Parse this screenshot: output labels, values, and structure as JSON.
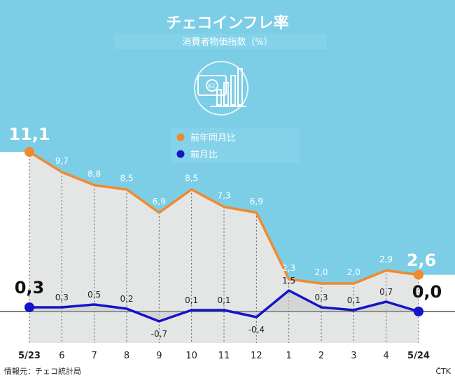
{
  "title": "チェコインフレ率",
  "subtitle": "消費者物価指数（%）",
  "source": "情報元：チェコ統計局",
  "agency": "ČTK",
  "icon": "koruna-chart-icon",
  "colors": {
    "sky": "#7ccde6",
    "yoy": "#f08a2e",
    "mom": "#1414c8",
    "fill": "#e4e6e6",
    "grid": "#555555"
  },
  "chart_data": {
    "type": "line",
    "categories": [
      "5/23",
      "6",
      "7",
      "8",
      "9",
      "10",
      "11",
      "12",
      "1",
      "2",
      "3",
      "4",
      "5/24"
    ],
    "series": [
      {
        "name": "前年同月比",
        "values": [
          11.1,
          9.7,
          8.8,
          8.5,
          6.9,
          8.5,
          7.3,
          6.9,
          2.3,
          2.0,
          2.0,
          2.9,
          2.6
        ],
        "labels": [
          "11,1",
          "9,7",
          "8,8",
          "8,5",
          "6,9",
          "8,5",
          "7,3",
          "6,9",
          "2,3",
          "2,0",
          "2,0",
          "2,9",
          "2,6"
        ]
      },
      {
        "name": "前月比",
        "values": [
          0.3,
          0.3,
          0.5,
          0.2,
          -0.7,
          0.1,
          0.1,
          -0.4,
          1.5,
          0.3,
          0.1,
          0.7,
          0.0
        ],
        "labels": [
          "0,3",
          "0,3",
          "0,5",
          "0,2",
          "-0,7",
          "0,1",
          "0,1",
          "-0,4",
          "1,5",
          "0,3",
          "0,1",
          "0,7",
          "0,0"
        ]
      }
    ],
    "legend_position": "top-center",
    "grid": "vertical dotted"
  }
}
